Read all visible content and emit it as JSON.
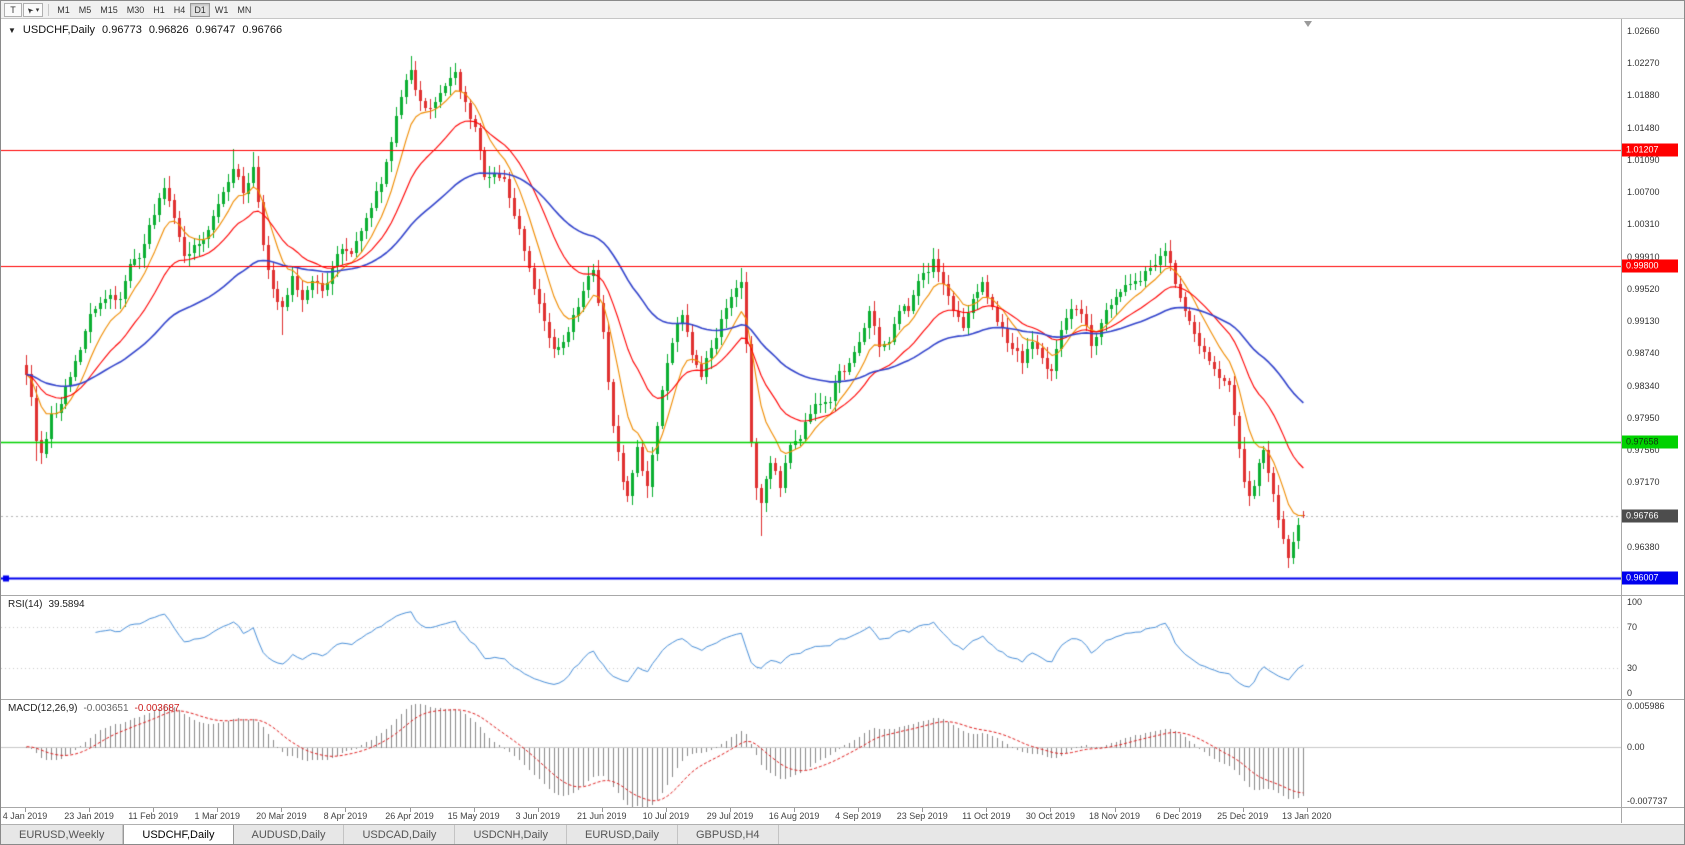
{
  "toolbar": {
    "text_tool_label": "T",
    "timeframes": [
      "M1",
      "M5",
      "M15",
      "M30",
      "H1",
      "H4",
      "D1",
      "W1",
      "MN"
    ],
    "active_timeframe": "D1"
  },
  "quote": {
    "collapse_icon": "▼",
    "symbol": "USDCHF,Daily",
    "open": "0.96773",
    "high": "0.96826",
    "low": "0.96747",
    "close": "0.96766"
  },
  "price_axis": {
    "labels": [
      "1.02660",
      "1.02270",
      "1.01880",
      "1.01480",
      "1.01090",
      "1.00700",
      "1.00310",
      "0.99910",
      "0.99520",
      "0.99130",
      "0.98740",
      "0.98340",
      "0.97950",
      "0.97560",
      "0.97170",
      "0.96380"
    ]
  },
  "indicators": {
    "rsi": {
      "name": "RSI(14)",
      "value": "39.5894",
      "axis": [
        "100",
        "70",
        "30",
        "0"
      ]
    },
    "macd": {
      "name": "MACD(12,26,9)",
      "value_main": "-0.003651",
      "value_signal": "-0.003687",
      "axis": [
        "0.005986",
        "0.00",
        "-0.007737"
      ]
    }
  },
  "date_axis": [
    "4 Jan 2019",
    "23 Jan 2019",
    "11 Feb 2019",
    "1 Mar 2019",
    "20 Mar 2019",
    "8 Apr 2019",
    "26 Apr 2019",
    "15 May 2019",
    "3 Jun 2019",
    "21 Jun 2019",
    "10 Jul 2019",
    "29 Jul 2019",
    "16 Aug 2019",
    "4 Sep 2019",
    "23 Sep 2019",
    "11 Oct 2019",
    "30 Oct 2019",
    "18 Nov 2019",
    "6 Dec 2019",
    "25 Dec 2019",
    "13 Jan 2020"
  ],
  "tabs": [
    {
      "label": "EURUSD,Weekly",
      "active": false
    },
    {
      "label": "USDCHF,Daily",
      "active": true
    },
    {
      "label": "AUDUSD,Daily",
      "active": false
    },
    {
      "label": "USDCAD,Daily",
      "active": false
    },
    {
      "label": "USDCNH,Daily",
      "active": false
    },
    {
      "label": "EURUSD,Daily",
      "active": false
    },
    {
      "label": "GBPUSD,H4",
      "active": false
    }
  ],
  "chart_data": {
    "type": "candlestick",
    "title": "USDCHF,Daily",
    "y_range": [
      0.958,
      1.028
    ],
    "days": 260,
    "seed": 7,
    "noise": 0.0006,
    "anchors": [
      [
        0,
        0.9848
      ],
      [
        1,
        0.982
      ],
      [
        2,
        0.9768
      ],
      [
        3,
        0.9752
      ],
      [
        5,
        0.98
      ],
      [
        7,
        0.9812
      ],
      [
        9,
        0.9845
      ],
      [
        11,
        0.9878
      ],
      [
        13,
        0.9922
      ],
      [
        15,
        0.9935
      ],
      [
        17,
        0.9945
      ],
      [
        19,
        0.994
      ],
      [
        21,
        0.9982
      ],
      [
        23,
        0.999
      ],
      [
        25,
        1.003
      ],
      [
        27,
        1.0062
      ],
      [
        28,
        1.0075
      ],
      [
        30,
        1.0038
      ],
      [
        32,
        0.9992
      ],
      [
        34,
        1.0005
      ],
      [
        36,
        1.0012
      ],
      [
        38,
        1.004
      ],
      [
        40,
        1.007
      ],
      [
        42,
        1.0098
      ],
      [
        44,
        1.0068
      ],
      [
        46,
        1.01
      ],
      [
        48,
        1.0005
      ],
      [
        50,
        0.9952
      ],
      [
        52,
        0.993
      ],
      [
        54,
        0.9968
      ],
      [
        56,
        0.9938
      ],
      [
        58,
        0.9962
      ],
      [
        60,
        0.995
      ],
      [
        62,
        0.9978
      ],
      [
        64,
        1.0
      ],
      [
        66,
        0.9995
      ],
      [
        68,
        1.0022
      ],
      [
        70,
        1.005
      ],
      [
        72,
        1.008
      ],
      [
        74,
        1.013
      ],
      [
        76,
        1.0185
      ],
      [
        78,
        1.0218
      ],
      [
        80,
        1.018
      ],
      [
        82,
        1.0172
      ],
      [
        84,
        1.019
      ],
      [
        86,
        1.0208
      ],
      [
        87,
        1.0215
      ],
      [
        89,
        1.0178
      ],
      [
        91,
        1.0148
      ],
      [
        93,
        1.0088
      ],
      [
        95,
        1.0092
      ],
      [
        97,
        1.0085
      ],
      [
        99,
        1.004
      ],
      [
        101,
        0.9998
      ],
      [
        103,
        0.9952
      ],
      [
        105,
        0.9912
      ],
      [
        107,
        0.9878
      ],
      [
        109,
        0.9888
      ],
      [
        111,
        0.992
      ],
      [
        113,
        0.995
      ],
      [
        115,
        0.9975
      ],
      [
        117,
        0.99
      ],
      [
        119,
        0.9785
      ],
      [
        121,
        0.9718
      ],
      [
        122,
        0.97
      ],
      [
        124,
        0.976
      ],
      [
        126,
        0.9712
      ],
      [
        128,
        0.9785
      ],
      [
        130,
        0.9862
      ],
      [
        132,
        0.991
      ],
      [
        133,
        0.992
      ],
      [
        135,
        0.9872
      ],
      [
        137,
        0.9845
      ],
      [
        139,
        0.988
      ],
      [
        141,
        0.9915
      ],
      [
        143,
        0.9942
      ],
      [
        145,
        0.996
      ],
      [
        146,
        0.9885
      ],
      [
        147,
        0.9765
      ],
      [
        148,
        0.971
      ],
      [
        149,
        0.9692
      ],
      [
        151,
        0.974
      ],
      [
        153,
        0.971
      ],
      [
        155,
        0.9762
      ],
      [
        157,
        0.977
      ],
      [
        159,
        0.98
      ],
      [
        161,
        0.9812
      ],
      [
        163,
        0.9815
      ],
      [
        165,
        0.9852
      ],
      [
        167,
        0.9862
      ],
      [
        169,
        0.9888
      ],
      [
        171,
        0.9925
      ],
      [
        173,
        0.9882
      ],
      [
        175,
        0.9888
      ],
      [
        177,
        0.9925
      ],
      [
        179,
        0.9925
      ],
      [
        181,
        0.9962
      ],
      [
        183,
        0.9972
      ],
      [
        184,
        0.9988
      ],
      [
        186,
        0.9958
      ],
      [
        188,
        0.9925
      ],
      [
        190,
        0.9905
      ],
      [
        192,
        0.994
      ],
      [
        194,
        0.996
      ],
      [
        196,
        0.993
      ],
      [
        198,
        0.9905
      ],
      [
        200,
        0.988
      ],
      [
        202,
        0.9862
      ],
      [
        204,
        0.9888
      ],
      [
        206,
        0.9868
      ],
      [
        208,
        0.9852
      ],
      [
        210,
        0.9902
      ],
      [
        212,
        0.9928
      ],
      [
        214,
        0.9922
      ],
      [
        216,
        0.9882
      ],
      [
        218,
        0.991
      ],
      [
        220,
        0.9932
      ],
      [
        222,
        0.9948
      ],
      [
        224,
        0.9958
      ],
      [
        226,
        0.9962
      ],
      [
        228,
        0.9978
      ],
      [
        230,
        0.9992
      ],
      [
        231,
        0.9998
      ],
      [
        233,
        0.9958
      ],
      [
        235,
        0.9925
      ],
      [
        237,
        0.9898
      ],
      [
        239,
        0.9875
      ],
      [
        241,
        0.9855
      ],
      [
        243,
        0.984
      ],
      [
        244,
        0.9835
      ],
      [
        245,
        0.9798
      ],
      [
        246,
        0.9758
      ],
      [
        247,
        0.9718
      ],
      [
        248,
        0.97
      ],
      [
        249,
        0.9712
      ],
      [
        250,
        0.974
      ],
      [
        251,
        0.9756
      ],
      [
        252,
        0.9728
      ],
      [
        253,
        0.9702
      ],
      [
        254,
        0.9672
      ],
      [
        255,
        0.9648
      ],
      [
        256,
        0.9625
      ],
      [
        257,
        0.9645
      ],
      [
        258,
        0.9665
      ],
      [
        259,
        0.96766
      ]
    ],
    "special_wicks": [
      {
        "i": 2,
        "l": 0.9743
      },
      {
        "i": 42,
        "h": 1.0122
      },
      {
        "i": 46,
        "h": 1.0118
      },
      {
        "i": 52,
        "l": 0.9896
      },
      {
        "i": 78,
        "h": 1.0235
      },
      {
        "i": 87,
        "h": 1.0226
      },
      {
        "i": 115,
        "h": 0.9982
      },
      {
        "i": 122,
        "l": 0.9693
      },
      {
        "i": 145,
        "h": 0.9978
      },
      {
        "i": 149,
        "l": 0.9652
      },
      {
        "i": 231,
        "h": 1.0008
      },
      {
        "i": 256,
        "l": 0.9613
      },
      {
        "i": 259,
        "o": 0.96773,
        "h": 0.96826,
        "l": 0.96747,
        "c": 0.96766
      }
    ],
    "current_bar": {
      "open": 0.96773,
      "high": 0.96826,
      "low": 0.96747,
      "close": 0.96766
    },
    "candle_up_color": "#0caf32",
    "candle_down_color": "#e03131",
    "moving_averages": [
      {
        "name": "fast-ma",
        "period": 8,
        "color": "#f08c00",
        "width": 1.1
      },
      {
        "name": "medium-ma",
        "period": 20,
        "color": "#ff0000",
        "width": 1.1
      },
      {
        "name": "slow-ma",
        "period": 50,
        "color": "#3344cc",
        "width": 1.6
      }
    ],
    "levels": [
      {
        "price": 1.01207,
        "label": "1.01207",
        "color": "#ff0000",
        "text_color": "#ffffff",
        "line_width": 1,
        "handle": false
      },
      {
        "price": 0.998,
        "label": "0.99800",
        "color": "#ff0000",
        "text_color": "#ffffff",
        "line_width": 1,
        "handle": false
      },
      {
        "price": 0.97658,
        "label": "0.97658",
        "color": "#00d200",
        "text_color": "#103310",
        "line_width": 1.5,
        "handle": false
      },
      {
        "price": 0.96007,
        "label": "0.96007",
        "color": "#0000ee",
        "text_color": "#ffffff",
        "line_width": 2,
        "handle": true
      }
    ],
    "current_price": {
      "label": "0.96766",
      "color": "#4d4d4d",
      "text_color": "#ffffff",
      "line_color": "#b5b5b5"
    },
    "rsi": {
      "period": 14,
      "color": "#4a90d9",
      "range": [
        0,
        100
      ],
      "levels": [
        70,
        30
      ]
    },
    "macd": {
      "fast": 12,
      "slow": 26,
      "signal": 9,
      "range": [
        -0.007737,
        0.005986
      ],
      "hist_color": "#8a8a8a",
      "signal_color": "#e02020"
    }
  }
}
